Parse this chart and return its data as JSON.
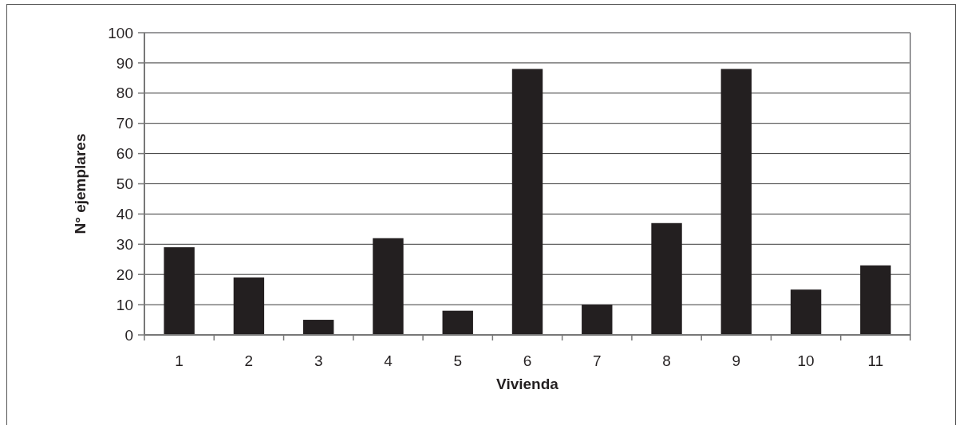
{
  "chart_data": {
    "type": "bar",
    "xlabel": "Vivienda",
    "ylabel": "N° ejemplares",
    "categories": [
      "1",
      "2",
      "3",
      "4",
      "5",
      "6",
      "7",
      "8",
      "9",
      "10",
      "11"
    ],
    "values": [
      29,
      19,
      5,
      32,
      8,
      88,
      10,
      37,
      88,
      15,
      23
    ],
    "color": "#231f20",
    "ylim": [
      0,
      100
    ],
    "yticks": [
      0,
      10,
      20,
      30,
      40,
      50,
      60,
      70,
      80,
      90,
      100
    ],
    "grid": "y"
  }
}
